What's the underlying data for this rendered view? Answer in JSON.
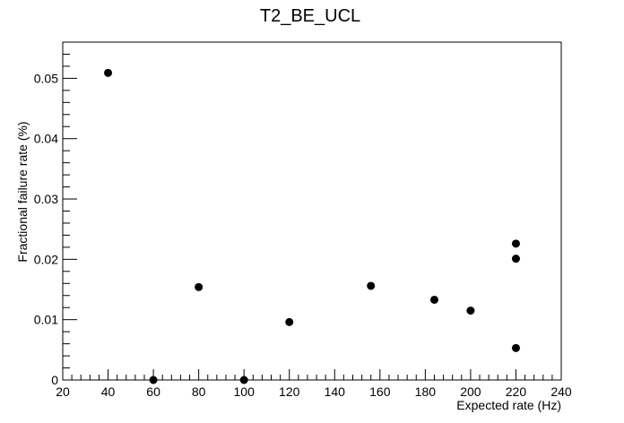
{
  "chart_data": {
    "type": "scatter",
    "title": "T2_BE_UCL",
    "xlabel": "Expected rate (Hz)",
    "ylabel": "Fractional failure rate (%)",
    "xlim": [
      20,
      240
    ],
    "ylim": [
      0,
      0.056
    ],
    "x_ticks": [
      "20",
      "40",
      "60",
      "80",
      "100",
      "120",
      "140",
      "160",
      "180",
      "200",
      "220",
      "240"
    ],
    "y_ticks": [
      "0",
      "0.01",
      "0.02",
      "0.03",
      "0.04",
      "0.05"
    ],
    "grid": false,
    "marker_color": "#000000",
    "points": [
      {
        "x": 40,
        "y": 0.0509
      },
      {
        "x": 60,
        "y": 0.0
      },
      {
        "x": 80,
        "y": 0.0154
      },
      {
        "x": 100,
        "y": 0.0
      },
      {
        "x": 120,
        "y": 0.0096
      },
      {
        "x": 156,
        "y": 0.0156
      },
      {
        "x": 184,
        "y": 0.0133
      },
      {
        "x": 200,
        "y": 0.0115
      },
      {
        "x": 220,
        "y": 0.0226
      },
      {
        "x": 220,
        "y": 0.0201
      },
      {
        "x": 220,
        "y": 0.0053
      }
    ]
  }
}
